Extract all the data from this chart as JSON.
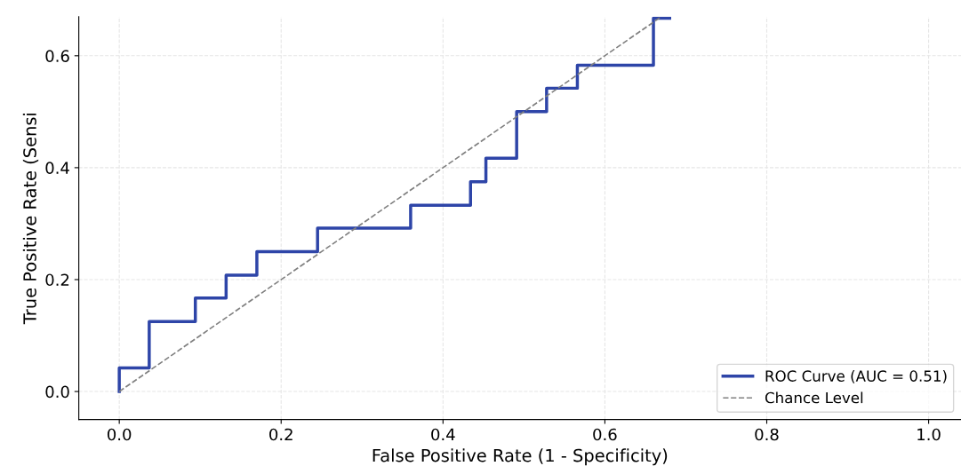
{
  "chart_data": {
    "type": "line",
    "xlabel": "False Positive Rate (1 - Specificity)",
    "ylabel": "True Positive Rate (Sensi",
    "series": [
      {
        "name": "ROC Curve (AUC = 0.51)",
        "color": "#2e45a8",
        "line_style": "solid",
        "x": [
          0,
          0,
          0.037,
          0.037,
          0.094,
          0.094,
          0.132,
          0.132,
          0.17,
          0.17,
          0.245,
          0.245,
          0.36,
          0.36,
          0.434,
          0.434,
          0.453,
          0.453,
          0.491,
          0.491,
          0.528,
          0.528,
          0.566,
          0.566,
          0.66,
          0.66,
          0.68
        ],
        "values": [
          0,
          0.042,
          0.042,
          0.125,
          0.125,
          0.167,
          0.167,
          0.208,
          0.208,
          0.25,
          0.25,
          0.292,
          0.292,
          0.333,
          0.333,
          0.375,
          0.375,
          0.417,
          0.417,
          0.5,
          0.5,
          0.542,
          0.542,
          0.583,
          0.583,
          0.667,
          0.667
        ]
      },
      {
        "name": "Chance Level",
        "color": "#808080",
        "line_style": "dashed",
        "x": [
          0,
          0.67
        ],
        "values": [
          0,
          0.67
        ]
      }
    ],
    "xlim": [
      -0.05,
      1.04
    ],
    "ylim": [
      -0.05,
      0.67
    ],
    "xticks": [
      {
        "value": 0,
        "label": "0.0"
      },
      0.2,
      0.4,
      0.6,
      0.8,
      {
        "value": 1,
        "label": "1.0"
      }
    ],
    "yticks": [
      {
        "value": 0,
        "label": "0.0"
      },
      0.2,
      0.4,
      0.6
    ],
    "grid": true,
    "legend": "lower right",
    "marker": "none"
  }
}
